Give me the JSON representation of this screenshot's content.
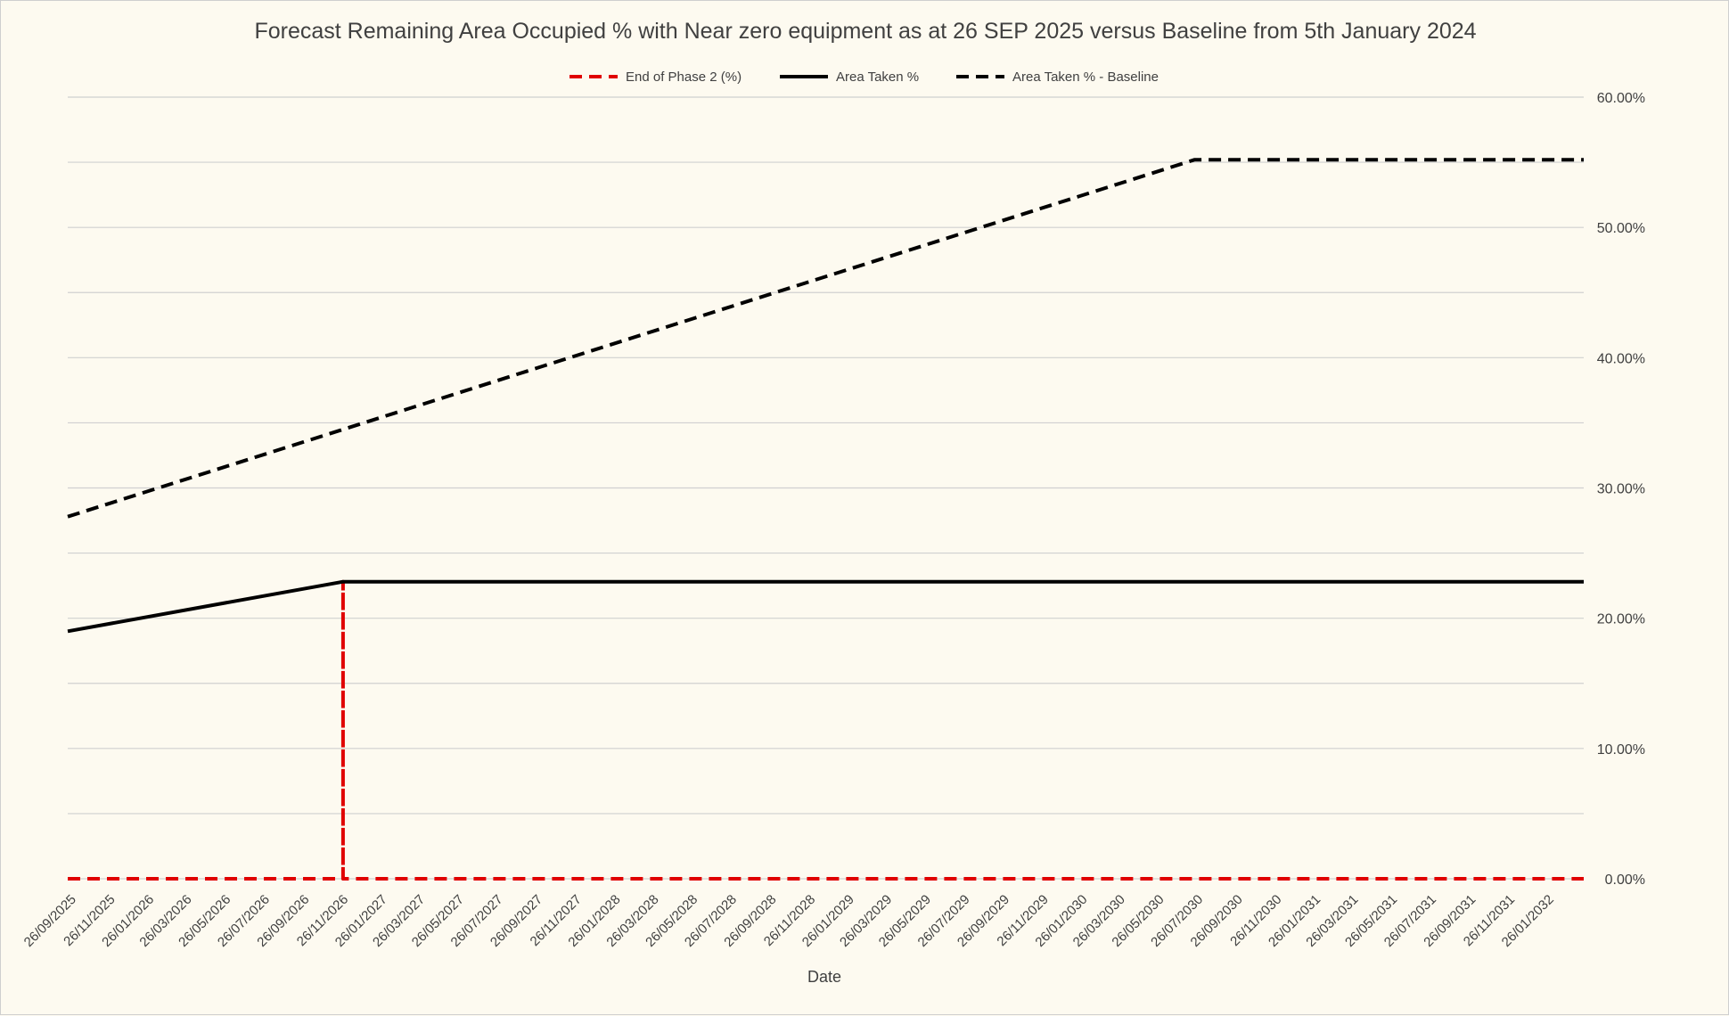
{
  "chart_data": {
    "type": "line",
    "title": "Forecast Remaining Area Occupied % with Near zero equipment as at 26 SEP 2025 versus Baseline from 5th January 2024",
    "xlabel": "Date",
    "ylabel": "",
    "y_axis_position": "right",
    "ylim": [
      0,
      60
    ],
    "y_ticks": [
      "0.00%",
      "10.00%",
      "20.00%",
      "30.00%",
      "40.00%",
      "50.00%",
      "60.00%"
    ],
    "x_range": [
      "26/09/2025",
      "26/03/2032"
    ],
    "x_tick_labels": [
      "26/09/2025",
      "26/11/2025",
      "26/01/2026",
      "26/03/2026",
      "26/05/2026",
      "26/07/2026",
      "26/09/2026",
      "26/11/2026",
      "26/01/2027",
      "26/03/2027",
      "26/05/2027",
      "26/07/2027",
      "26/09/2027",
      "26/11/2027",
      "26/01/2028",
      "26/03/2028",
      "26/05/2028",
      "26/07/2028",
      "26/09/2028",
      "26/11/2028",
      "26/01/2029",
      "26/03/2029",
      "26/05/2029",
      "26/07/2029",
      "26/09/2029",
      "26/11/2029",
      "26/01/2030",
      "26/03/2030",
      "26/05/2030",
      "26/07/2030",
      "26/09/2030",
      "26/11/2030",
      "26/01/2031",
      "26/03/2031",
      "26/05/2031",
      "26/07/2031",
      "26/09/2031",
      "26/11/2031",
      "26/01/2032"
    ],
    "grid": true,
    "legend_position": "top",
    "series": [
      {
        "name": "End of Phase 2 (%)",
        "color": "#e00000",
        "dash": "dashed",
        "points": [
          {
            "x": "26/09/2025",
            "y": 0
          },
          {
            "x": "01/12/2026",
            "y": 0
          },
          {
            "x": "01/12/2026",
            "y": 22.8
          },
          {
            "x": "01/12/2026",
            "y": 0
          },
          {
            "x": "26/03/2032",
            "y": 0
          }
        ]
      },
      {
        "name": "Area Taken %",
        "color": "#000000",
        "dash": "solid",
        "points": [
          {
            "x": "26/09/2025",
            "y": 19.0
          },
          {
            "x": "01/12/2026",
            "y": 22.8
          },
          {
            "x": "26/03/2032",
            "y": 22.8
          }
        ]
      },
      {
        "name": "Area Taken % - Baseline",
        "color": "#000000",
        "dash": "dashed",
        "points": [
          {
            "x": "26/09/2025",
            "y": 27.8
          },
          {
            "x": "26/07/2030",
            "y": 55.2
          },
          {
            "x": "26/03/2032",
            "y": 55.2
          }
        ]
      }
    ]
  }
}
